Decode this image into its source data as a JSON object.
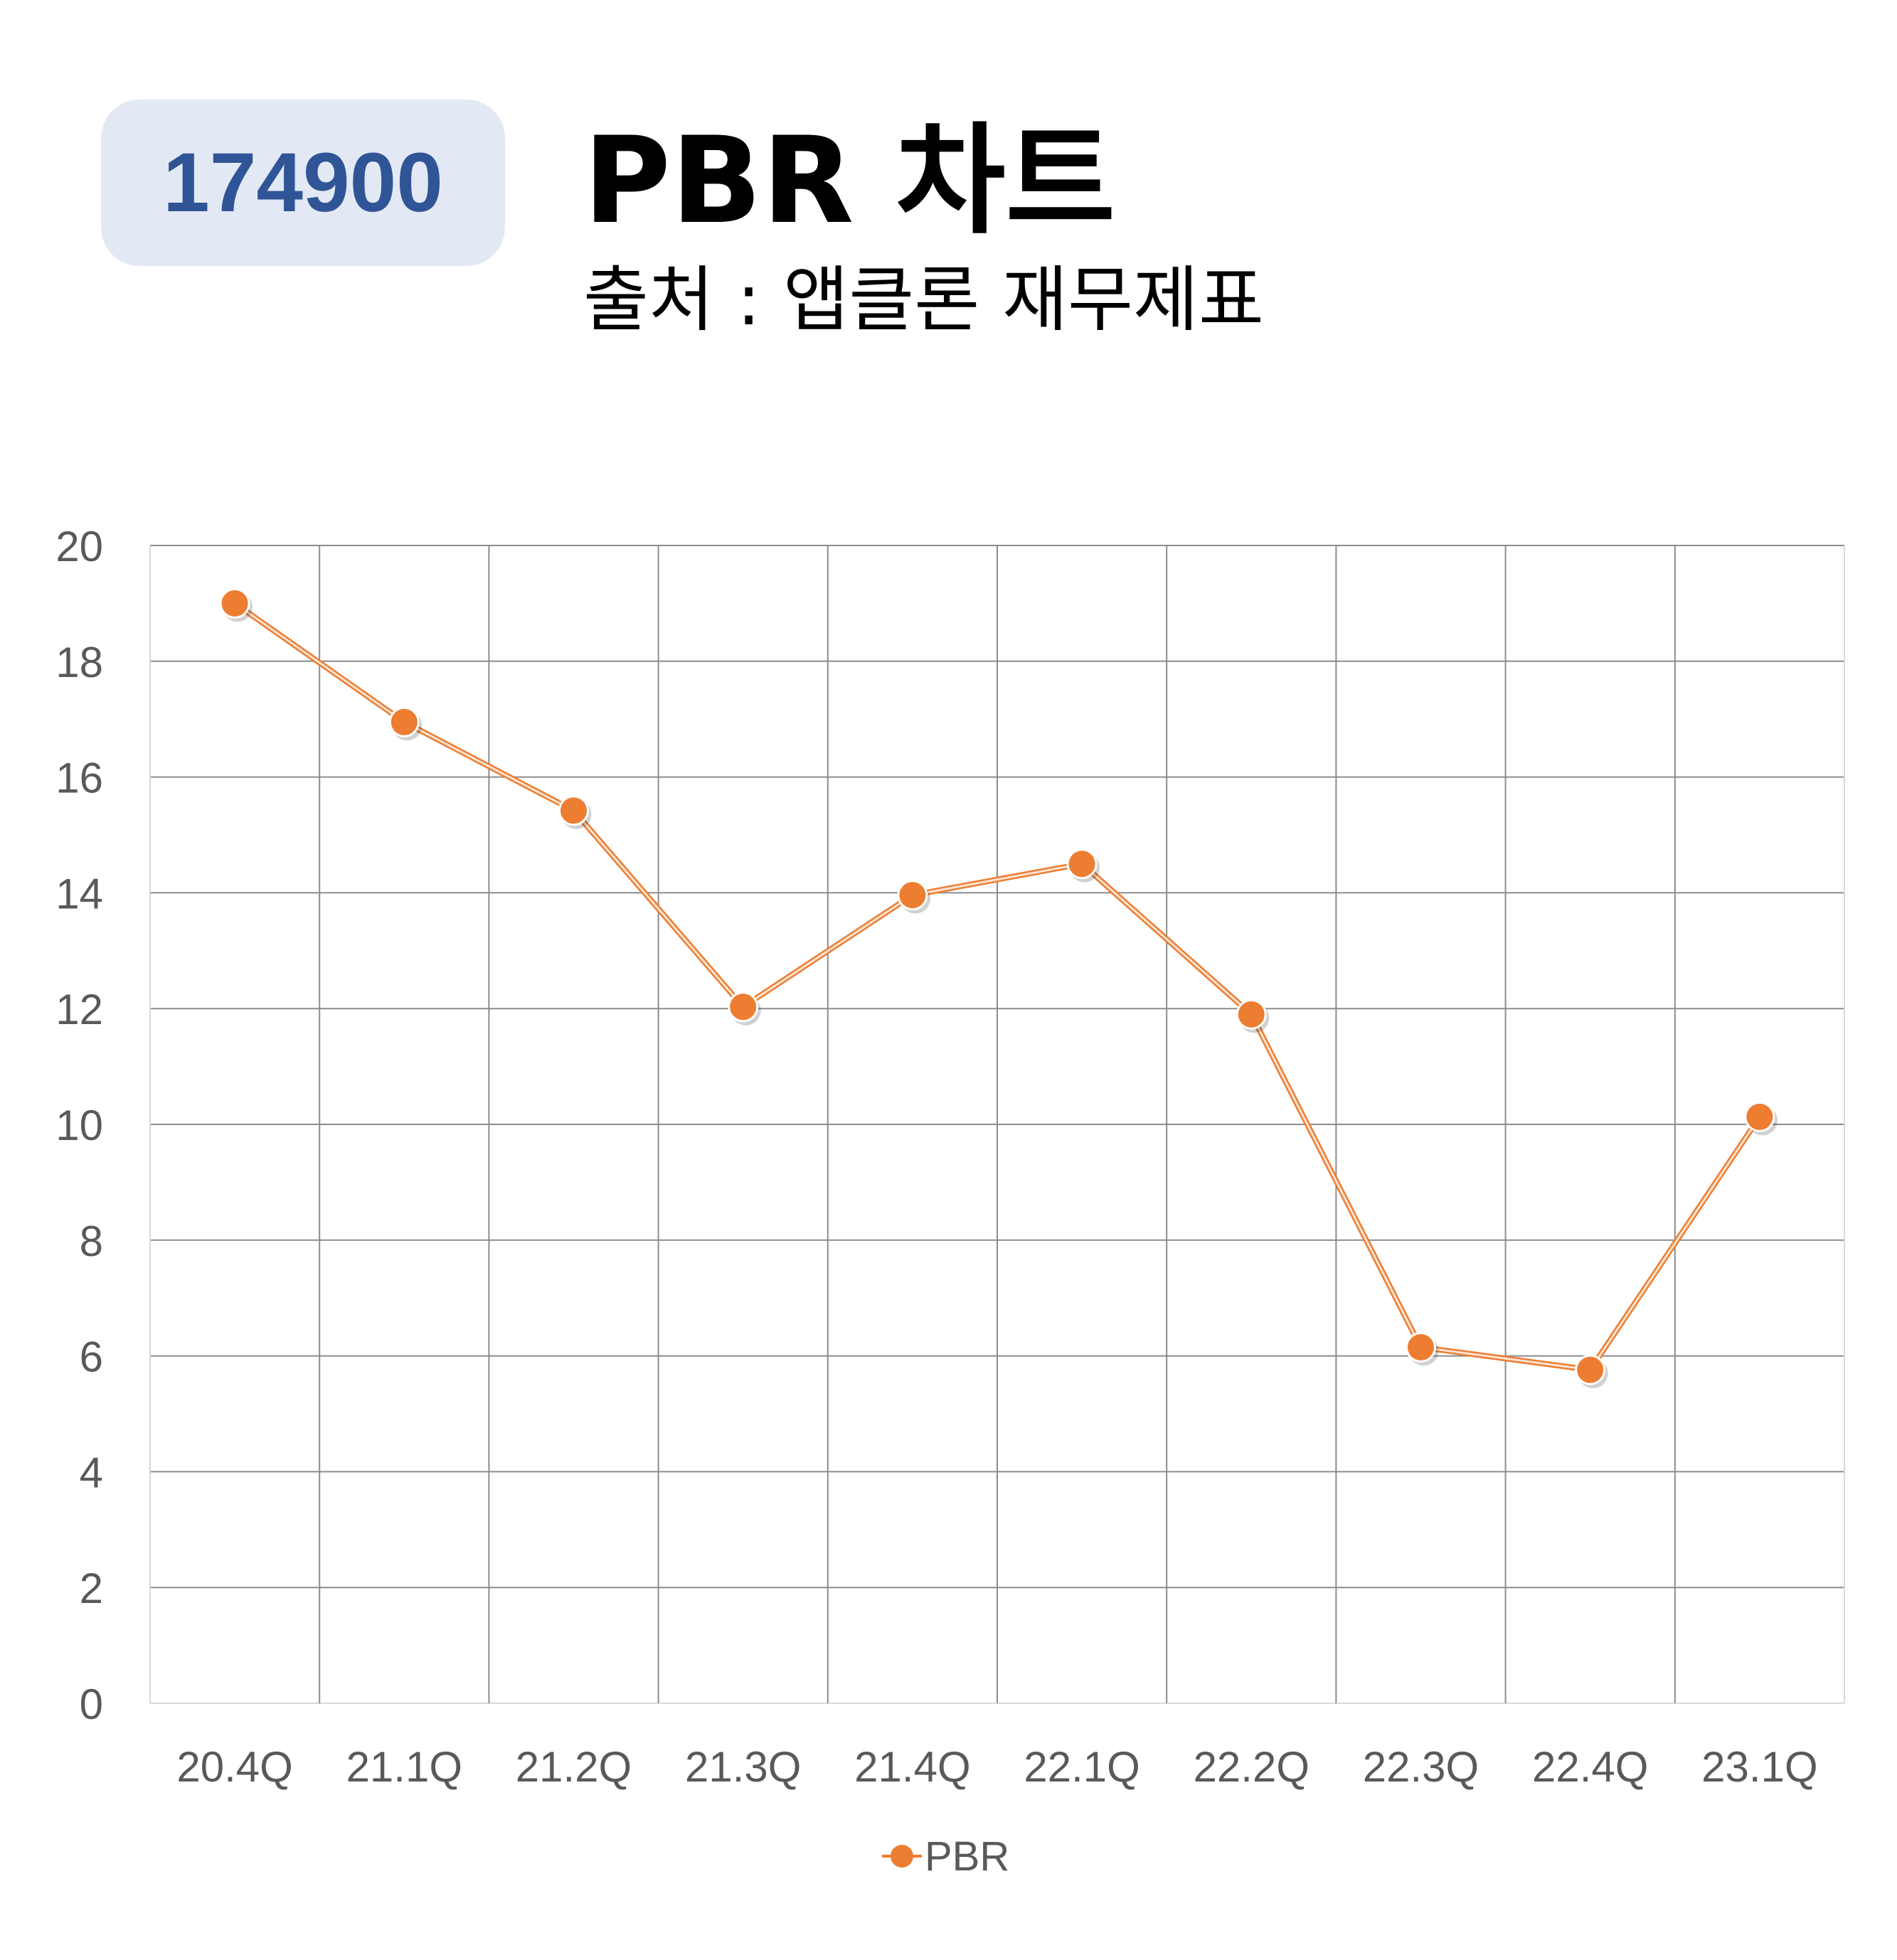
{
  "header": {
    "code": "174900",
    "title": "PBR 차트",
    "subtitle": "출처 : 앱클론 재무제표"
  },
  "chart_data": {
    "type": "line",
    "categories": [
      "20.4Q",
      "21.1Q",
      "21.2Q",
      "21.3Q",
      "21.4Q",
      "22.1Q",
      "22.2Q",
      "22.3Q",
      "22.4Q",
      "23.1Q"
    ],
    "series": [
      {
        "name": "PBR",
        "values": [
          19.0,
          16.95,
          15.42,
          12.03,
          13.96,
          14.5,
          11.9,
          6.15,
          5.76,
          10.13
        ],
        "color": "#ed7d31"
      }
    ],
    "ylim": [
      0,
      20
    ],
    "yticks": [
      "0",
      "2",
      "4",
      "6",
      "8",
      "10",
      "12",
      "14",
      "16",
      "18",
      "20"
    ],
    "grid": true,
    "legend": "bottom"
  }
}
